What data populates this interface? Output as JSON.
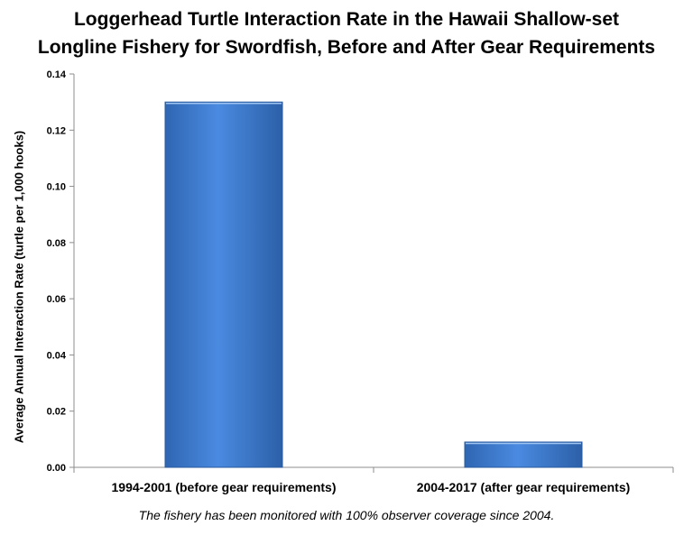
{
  "chart_data": {
    "type": "bar",
    "title_line1": "Loggerhead Turtle Interaction Rate in the Hawaii Shallow-set",
    "title_line2": "Longline Fishery for Swordfish, Before and After Gear Requirements",
    "ylabel": "Average Annual Interaction Rate (turtle per 1,000 hooks)",
    "xlabel": "",
    "categories": [
      "1994-2001 (before gear requirements)",
      "2004-2017 (after gear requirements)"
    ],
    "values": [
      0.13,
      0.009
    ],
    "ylim": [
      0,
      0.14
    ],
    "yticks": [
      "0.00",
      "0.02",
      "0.04",
      "0.06",
      "0.08",
      "0.10",
      "0.12",
      "0.14"
    ],
    "bar_color": "#3f7fd1",
    "grid": false,
    "legend": "none",
    "footnote": "The fishery has been monitored with 100% observer coverage since 2004."
  }
}
